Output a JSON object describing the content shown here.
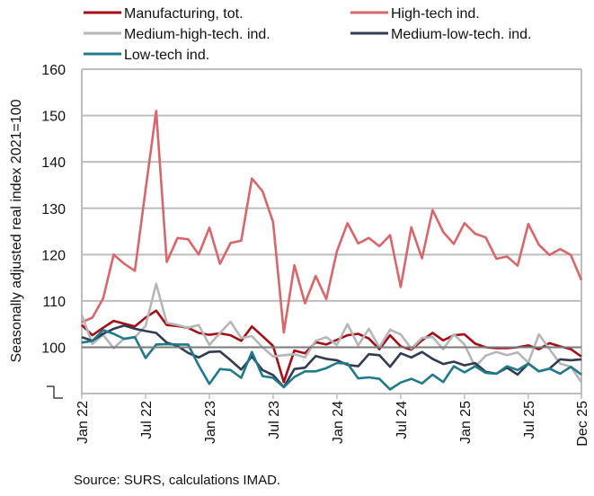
{
  "chart_data": {
    "type": "line",
    "title": "",
    "xlabel": "",
    "ylabel": "Seasonally adjusted real  index 2021=100",
    "ylim": [
      90,
      160
    ],
    "yticks": [
      100,
      110,
      120,
      130,
      140,
      150,
      160
    ],
    "ytick_labels": [
      "100",
      "110",
      "120",
      "130",
      "140",
      "150",
      "160"
    ],
    "reference_line": 100,
    "grid": true,
    "legend_position": "top",
    "x": [
      "Jan 22",
      "Feb 22",
      "Mar 22",
      "Apr 22",
      "May 22",
      "Jun 22",
      "Jul 22",
      "Aug 22",
      "Sep 22",
      "Oct 22",
      "Nov 22",
      "Dec 22",
      "Jan 23",
      "Feb 23",
      "Mar 23",
      "Apr 23",
      "May 23",
      "Jun 23",
      "Jul 23",
      "Aug 23",
      "Sep 23",
      "Oct 23",
      "Nov 23",
      "Dec 23",
      "Jan 24",
      "Feb 24",
      "Mar 24",
      "Apr 24",
      "May 24",
      "Jun 24",
      "Jul 24",
      "Aug 24",
      "Sep 24",
      "Oct 24",
      "Nov 24",
      "Dec 24",
      "Jan 25",
      "Feb 25",
      "Mar 25",
      "Apr 25",
      "May 25",
      "Jun 25",
      "Jul 25",
      "Aug 25",
      "Sep 25",
      "Oct 25",
      "Nov 25",
      "Dec 25"
    ],
    "xtick_indices": [
      0,
      6,
      12,
      18,
      24,
      30,
      36,
      42,
      47
    ],
    "xtick_labels": [
      "Jan 22",
      "Jul 22",
      "Jan 23",
      "Jul 23",
      "Jan 24",
      "Jul 24",
      "Jan 25",
      "Jul 25",
      "Dec 25"
    ],
    "series": [
      {
        "name": "Manufacturing, tot.",
        "color": "#a50f15",
        "values": [
          104.8,
          102.6,
          104.2,
          105.7,
          105.1,
          104.5,
          106.4,
          107.9,
          104.8,
          104.6,
          104.2,
          103.1,
          102.7,
          103.0,
          102.6,
          101.4,
          104.5,
          102.4,
          100.3,
          92.5,
          99.3,
          98.7,
          101.1,
          100.6,
          101.6,
          102.6,
          102.9,
          101.9,
          99.6,
          102.6,
          100.2,
          99.5,
          101.5,
          103.1,
          101.5,
          102.6,
          102.8,
          100.8,
          100.0,
          99.8,
          99.8,
          100.0,
          100.4,
          99.6,
          100.9,
          100.2,
          99.6,
          98.0
        ]
      },
      {
        "name": "High-tech ind.",
        "color": "#d9666a",
        "values": [
          105.4,
          106.4,
          110.5,
          120.0,
          118.0,
          116.5,
          134.0,
          151.0,
          118.4,
          123.6,
          123.3,
          120.0,
          125.8,
          118.0,
          122.5,
          123.0,
          136.4,
          133.7,
          127.0,
          103.2,
          117.7,
          109.5,
          115.4,
          110.4,
          120.7,
          126.8,
          122.4,
          123.6,
          121.8,
          124.2,
          113.0,
          125.9,
          119.2,
          129.6,
          124.9,
          122.3,
          126.8,
          124.5,
          123.7,
          119.1,
          119.6,
          117.6,
          126.6,
          122.1,
          119.9,
          121.2,
          119.9,
          114.5
        ]
      },
      {
        "name": "Medium-high-tech. ind.",
        "color": "#b4b6b9",
        "values": [
          107.0,
          100.7,
          102.7,
          99.8,
          101.9,
          102.2,
          104.6,
          113.7,
          105.3,
          104.8,
          104.2,
          104.8,
          100.5,
          103.1,
          105.5,
          102.0,
          102.4,
          100.0,
          98.0,
          98.3,
          98.5,
          97.8,
          101.4,
          102.2,
          100.5,
          105.0,
          100.4,
          104.0,
          100.0,
          103.8,
          102.8,
          99.7,
          102.0,
          102.2,
          99.6,
          102.8,
          100.6,
          95.8,
          98.2,
          99.0,
          98.3,
          98.9,
          96.7,
          102.8,
          99.6,
          96.5,
          95.8,
          92.5
        ]
      },
      {
        "name": "Medium-low-tech. ind.",
        "color": "#323b52",
        "values": [
          102.2,
          101.4,
          102.9,
          104.0,
          104.7,
          104.0,
          103.5,
          103.1,
          101.0,
          100.3,
          98.8,
          97.8,
          99.0,
          99.1,
          97.2,
          95.2,
          98.0,
          95.1,
          94.0,
          91.4,
          95.3,
          95.6,
          98.1,
          97.5,
          97.2,
          96.2,
          95.9,
          98.5,
          98.3,
          95.8,
          98.7,
          97.8,
          99.0,
          97.5,
          96.4,
          96.9,
          96.1,
          96.6,
          94.7,
          94.3,
          95.6,
          94.1,
          96.5,
          94.8,
          95.4,
          97.4,
          97.2,
          97.4
        ]
      },
      {
        "name": "Low-tech ind.",
        "color": "#1f7a8c",
        "values": [
          101.0,
          101.4,
          103.7,
          102.9,
          101.8,
          102.2,
          97.7,
          100.6,
          100.7,
          100.6,
          100.6,
          96.1,
          92.1,
          95.3,
          95.1,
          93.4,
          99.0,
          93.8,
          93.4,
          91.4,
          93.6,
          94.8,
          94.8,
          95.5,
          96.6,
          96.5,
          93.3,
          93.5,
          93.2,
          90.9,
          92.4,
          93.2,
          92.2,
          94.1,
          92.5,
          95.9,
          94.6,
          95.9,
          94.5,
          94.3,
          95.9,
          95.1,
          96.5,
          94.8,
          95.4,
          94.3,
          95.8,
          94.1
        ]
      }
    ]
  },
  "source_note": "Source: SURS, calculations IMAD."
}
